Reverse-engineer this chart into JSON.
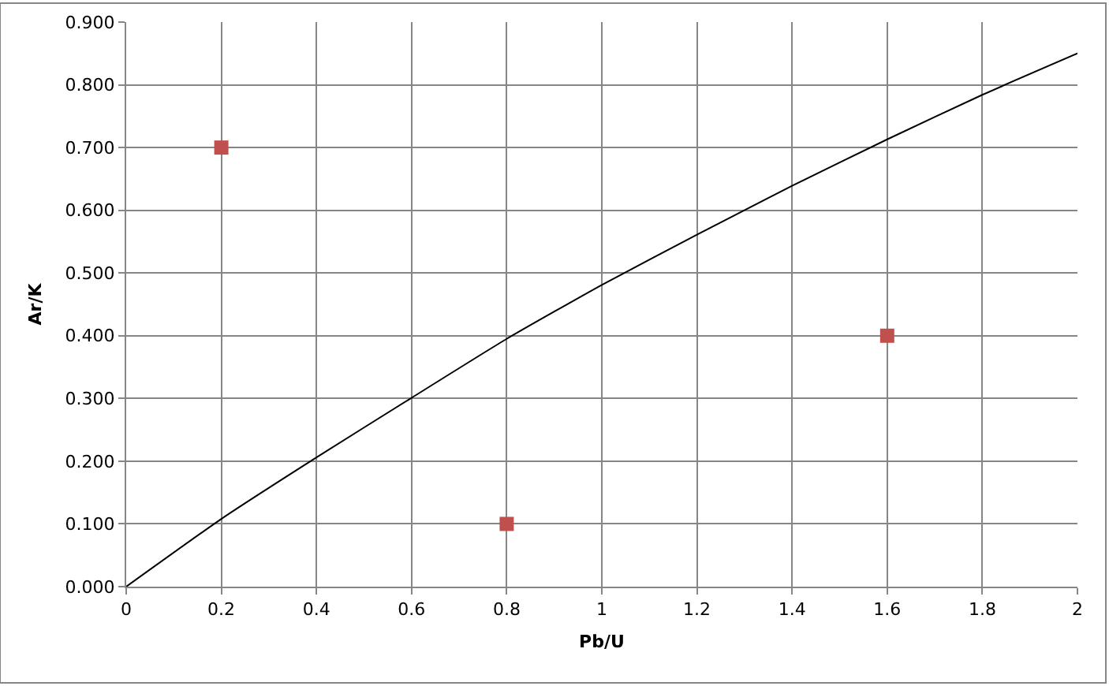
{
  "chart_data": {
    "type": "scatter",
    "xlabel": "Pb/U",
    "ylabel": "Ar/K",
    "series": [
      {
        "type": "line",
        "color": "#000000",
        "marker": "none",
        "x": [
          0,
          0.2,
          0.4,
          0.6,
          0.8,
          1.0,
          1.2,
          1.4,
          1.6,
          1.8,
          2.0
        ],
        "values": [
          0,
          0.108,
          0.206,
          0.301,
          0.395,
          0.481,
          0.561,
          0.639,
          0.713,
          0.784,
          0.85
        ]
      },
      {
        "color": "#c0504d",
        "marker": "square",
        "x": [
          0.2,
          0.8,
          1.6
        ],
        "values": [
          0.7,
          0.1,
          0.4
        ]
      }
    ],
    "xlim": [
      0,
      2
    ],
    "xticks": [
      0,
      0.2,
      0.4,
      0.6,
      0.8,
      1,
      1.2,
      1.4,
      1.6,
      1.8,
      2
    ],
    "ylim": [
      0,
      0.9
    ],
    "yticks": [
      {
        "value": 0,
        "label": "0.000"
      },
      {
        "value": 0.1,
        "label": "0.100"
      },
      {
        "value": 0.2,
        "label": "0.200"
      },
      {
        "value": 0.3,
        "label": "0.300"
      },
      {
        "value": 0.4,
        "label": "0.400"
      },
      {
        "value": 0.5,
        "label": "0.500"
      },
      {
        "value": 0.6,
        "label": "0.600"
      },
      {
        "value": 0.7,
        "label": "0.700"
      },
      {
        "value": 0.8,
        "label": "0.800"
      },
      {
        "value": 0.9,
        "label": "0.900"
      }
    ],
    "grid": true
  }
}
